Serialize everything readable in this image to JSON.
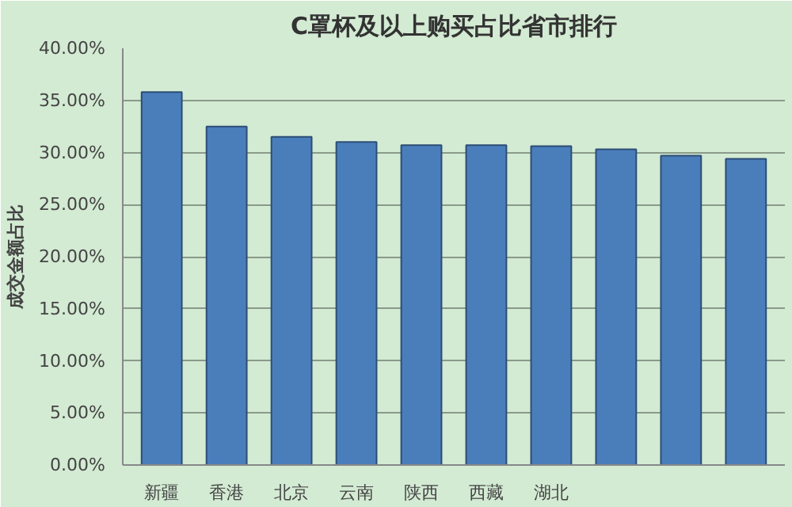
{
  "chart_data": {
    "type": "bar",
    "title": "C罩杯及以上购买占比省市排行",
    "ylabel": "成交金额占比",
    "categories": [
      "新疆",
      "香港",
      "北京",
      "云南",
      "陕西",
      "西藏",
      "湖北",
      null,
      null,
      null
    ],
    "values": [
      35.8,
      32.5,
      31.5,
      31.0,
      30.7,
      30.7,
      30.6,
      30.3,
      29.7,
      29.4
    ],
    "color": "#4a7ebb",
    "ylim": [
      0,
      40
    ],
    "yticks": [
      {
        "value": 0,
        "label": "0.00%"
      },
      {
        "value": 5,
        "label": "5.00%"
      },
      {
        "value": 10,
        "label": "10.00%"
      },
      {
        "value": 15,
        "label": "15.00%"
      },
      {
        "value": 20,
        "label": "20.00%"
      },
      {
        "value": 25,
        "label": "25.00%"
      },
      {
        "value": 30,
        "label": "30.00%"
      },
      {
        "value": 35,
        "label": "35.00%"
      },
      {
        "value": 40,
        "label": "40.00%"
      }
    ],
    "grid": "y"
  }
}
